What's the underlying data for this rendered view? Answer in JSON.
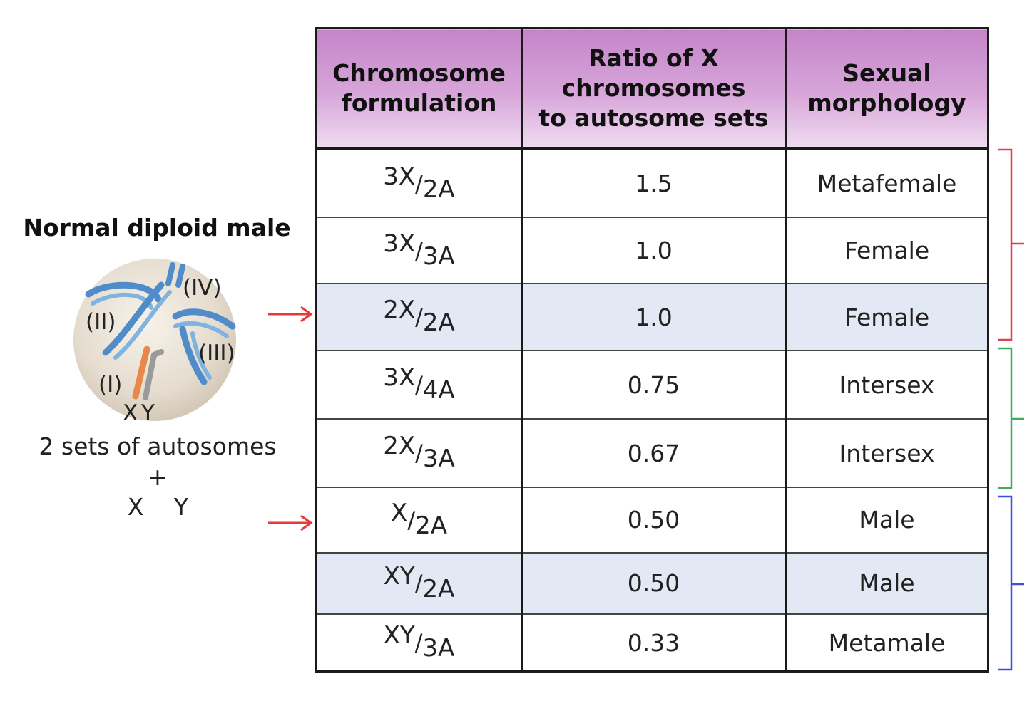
{
  "cell": {
    "title": "Normal diploid male",
    "chromosome_labels": [
      "(IV)",
      "(II)",
      "(III)",
      "(I)",
      "X",
      "Y"
    ],
    "autosomes_label": "2 sets of autosomes",
    "plus": "+",
    "x_label": "X",
    "y_label": "Y"
  },
  "table": {
    "headers": [
      "Chromosome\nformulation",
      "Ratio of X\nchromosomes\nto autosome sets",
      "Sexual\nmorphology"
    ],
    "rows": [
      {
        "num": "3X",
        "den": "2A",
        "ratio": "1.5",
        "morph": "Metafemale"
      },
      {
        "num": "3X",
        "den": "3A",
        "ratio": "1.0",
        "morph": "Female"
      },
      {
        "num": "2X",
        "den": "2A",
        "ratio": "1.0",
        "morph": "Female"
      },
      {
        "num": "3X",
        "den": "4A",
        "ratio": "0.75",
        "morph": "Intersex"
      },
      {
        "num": "2X",
        "den": "3A",
        "ratio": "0.67",
        "morph": "Intersex"
      },
      {
        "num": "X",
        "den": "2A",
        "ratio": "0.50",
        "morph": "Male"
      },
      {
        "num": "XY",
        "den": "2A",
        "ratio": "0.50",
        "morph": "Male"
      },
      {
        "num": "XY",
        "den": "3A",
        "ratio": "0.33",
        "morph": "Metamale"
      }
    ],
    "highlighted_rows": [
      2,
      6
    ]
  },
  "colors": {
    "header": "#c98dcc",
    "highlight": "#e2e8f4",
    "arrow": "#e83a3a",
    "bracket_female": "#e0404a",
    "bracket_intersex": "#3fae5a",
    "bracket_male": "#3b50e0",
    "autosome": "#5b9bd5",
    "x_chromosome": "#e8884a",
    "y_chromosome": "#9a9a9a"
  }
}
